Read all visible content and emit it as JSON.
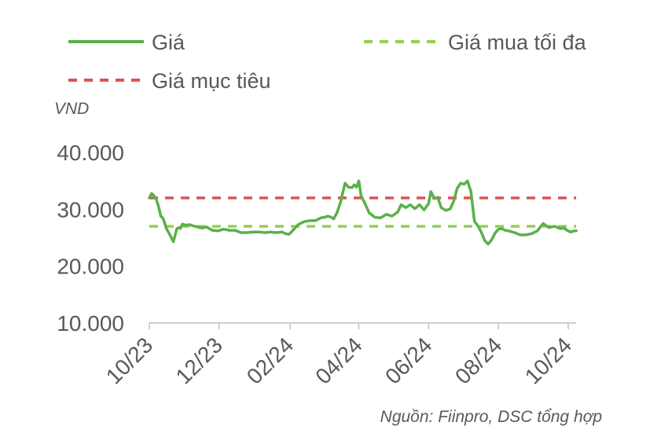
{
  "chart_data": {
    "type": "line",
    "unit_label": "VND",
    "source": "Nguồn: Fiinpro, DSC tổng hợp",
    "colors": {
      "price": "#5bb04a",
      "max_buy": "#92d050",
      "target": "#e05252"
    },
    "legend": {
      "placement": "top",
      "entries": [
        {
          "key": "price",
          "label": "Giá",
          "style": "solid"
        },
        {
          "key": "max_buy",
          "label": "Giá mua tối đa",
          "style": "dashed"
        },
        {
          "key": "target",
          "label": "Giá mục tiêu",
          "style": "dashed"
        }
      ]
    },
    "y_axis": {
      "ylim": [
        10000,
        40000
      ],
      "ticks": [
        {
          "value": 10000,
          "label": "10.000"
        },
        {
          "value": 20000,
          "label": "20.000"
        },
        {
          "value": 30000,
          "label": "30.000"
        },
        {
          "value": 40000,
          "label": "40.000"
        }
      ]
    },
    "x_axis": {
      "xlim": [
        "2023-10-01",
        "2024-10-08"
      ],
      "ticks": [
        {
          "date": "2023-10-01",
          "label": "10/23"
        },
        {
          "date": "2023-12-01",
          "label": "12/23"
        },
        {
          "date": "2024-02-01",
          "label": "02/24"
        },
        {
          "date": "2024-04-01",
          "label": "04/24"
        },
        {
          "date": "2024-06-01",
          "label": "06/24"
        },
        {
          "date": "2024-08-01",
          "label": "08/24"
        },
        {
          "date": "2024-10-01",
          "label": "10/24"
        }
      ]
    },
    "grid": false,
    "hlines": [
      {
        "key": "target",
        "value": 32000
      },
      {
        "key": "max_buy",
        "value": 27000
      }
    ],
    "series": [
      {
        "key": "price",
        "x": [
          "2023-10-01",
          "2023-10-03",
          "2023-10-05",
          "2023-10-07",
          "2023-10-09",
          "2023-10-11",
          "2023-10-13",
          "2023-10-16",
          "2023-10-19",
          "2023-10-22",
          "2023-10-25",
          "2023-10-27",
          "2023-10-28",
          "2023-10-30",
          "2023-11-02",
          "2023-11-05",
          "2023-11-08",
          "2023-11-12",
          "2023-11-16",
          "2023-11-20",
          "2023-11-25",
          "2023-11-30",
          "2023-12-05",
          "2023-12-10",
          "2023-12-15",
          "2023-12-20",
          "2023-12-25",
          "2023-12-31",
          "2024-01-05",
          "2024-01-10",
          "2024-01-15",
          "2024-01-20",
          "2024-01-25",
          "2024-01-28",
          "2024-01-31",
          "2024-02-03",
          "2024-02-08",
          "2024-02-13",
          "2024-02-18",
          "2024-02-23",
          "2024-02-28",
          "2024-03-02",
          "2024-03-05",
          "2024-03-08",
          "2024-03-10",
          "2024-03-13",
          "2024-03-16",
          "2024-03-20",
          "2024-03-23",
          "2024-03-26",
          "2024-03-28",
          "2024-03-30",
          "2024-04-01",
          "2024-04-03",
          "2024-04-06",
          "2024-04-10",
          "2024-04-15",
          "2024-04-20",
          "2024-04-25",
          "2024-04-30",
          "2024-05-05",
          "2024-05-08",
          "2024-05-12",
          "2024-05-16",
          "2024-05-20",
          "2024-05-24",
          "2024-05-28",
          "2024-06-01",
          "2024-06-03",
          "2024-06-06",
          "2024-06-09",
          "2024-06-12",
          "2024-06-16",
          "2024-06-20",
          "2024-06-23",
          "2024-06-26",
          "2024-06-29",
          "2024-07-02",
          "2024-07-05",
          "2024-07-08",
          "2024-07-11",
          "2024-07-14",
          "2024-07-17",
          "2024-07-20",
          "2024-07-23",
          "2024-07-26",
          "2024-07-29",
          "2024-08-01",
          "2024-08-04",
          "2024-08-07",
          "2024-08-10",
          "2024-08-15",
          "2024-08-20",
          "2024-08-25",
          "2024-08-30",
          "2024-09-04",
          "2024-09-09",
          "2024-09-14",
          "2024-09-19",
          "2024-09-24",
          "2024-09-27",
          "2024-09-30",
          "2024-10-03",
          "2024-10-06",
          "2024-10-08"
        ],
        "values": [
          32000,
          32800,
          32400,
          31800,
          30500,
          28800,
          28400,
          26600,
          25500,
          24300,
          26600,
          26800,
          26600,
          27400,
          27200,
          27300,
          27100,
          26900,
          26700,
          26900,
          26300,
          26200,
          26500,
          26300,
          26300,
          25900,
          25900,
          26000,
          26000,
          25900,
          26000,
          25900,
          26000,
          25700,
          25600,
          26200,
          27300,
          27800,
          28000,
          28000,
          28500,
          28600,
          28800,
          28600,
          28300,
          29400,
          31200,
          34600,
          33900,
          33800,
          34300,
          33900,
          35000,
          32400,
          31200,
          29400,
          28600,
          28500,
          29100,
          28800,
          29500,
          30800,
          30300,
          30800,
          30100,
          30800,
          29900,
          31000,
          33100,
          31900,
          32100,
          30300,
          29800,
          30100,
          31500,
          33700,
          34600,
          34400,
          35000,
          33100,
          27900,
          27100,
          26000,
          24500,
          23900,
          24600,
          25800,
          26500,
          26600,
          26300,
          26200,
          25900,
          25500,
          25500,
          25700,
          26200,
          27500,
          26800,
          27000,
          26600,
          26700,
          26300,
          26000,
          26200,
          26200
        ]
      }
    ]
  }
}
